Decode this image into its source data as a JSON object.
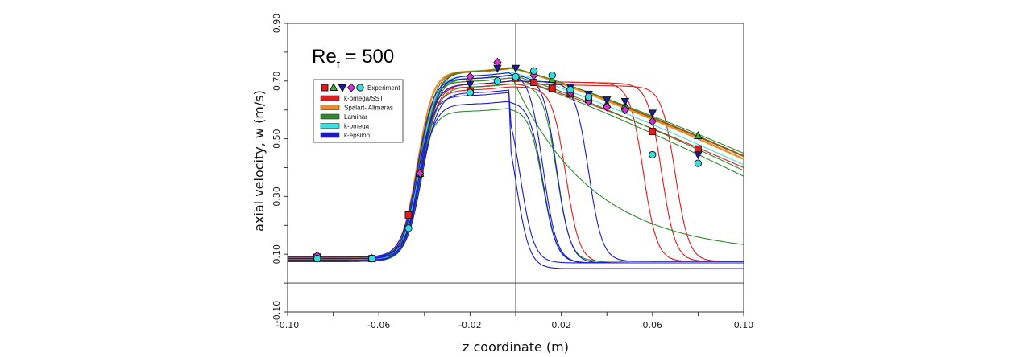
{
  "chart_data": {
    "type": "line",
    "title": "",
    "annotation": {
      "main": "Re",
      "subscript": "t",
      "rest": " = 500"
    },
    "xlabel": "z coordinate (m)",
    "ylabel": "axial velocity, w (m/s)",
    "xlim": [
      -0.1,
      0.1
    ],
    "ylim": [
      -0.1,
      0.9
    ],
    "xticks": [
      -0.1,
      -0.08,
      -0.06,
      -0.04,
      -0.02,
      0.0,
      0.02,
      0.04,
      0.06,
      0.08,
      0.1
    ],
    "xtick_labels": [
      "-0.10",
      "",
      "-0.06",
      "",
      "-0.02",
      "",
      "0.02",
      "",
      "0.06",
      "",
      "0.10"
    ],
    "yticks": [
      -0.1,
      0.0,
      0.1,
      0.2,
      0.3,
      0.4,
      0.5,
      0.6,
      0.7,
      0.8,
      0.9
    ],
    "ytick_labels": [
      "-0.10",
      "",
      "0.10",
      "",
      "0.30",
      "",
      "0.50",
      "",
      "0.70",
      "",
      "0.90"
    ],
    "reference_lines": {
      "horizontal_y": 0.0,
      "vertical_x": 0.0
    },
    "grid": false,
    "legend": {
      "placement": "upper-left",
      "experiment_label": "Experiment",
      "entries": [
        {
          "name": "k-omega/SST",
          "color": "#e41a1c"
        },
        {
          "name": "Spalart- Allmaras",
          "color": "#f28a1e"
        },
        {
          "name": "Laminar",
          "color": "#2e8b2e"
        },
        {
          "name": "k-omega",
          "color": "#3fe0e0"
        },
        {
          "name": "k-epsilon",
          "color": "#1a1ad6"
        }
      ]
    },
    "experiment_markers": [
      {
        "shape": "square",
        "color": "#e41a1c"
      },
      {
        "shape": "triangle-up",
        "color": "#2eb82e"
      },
      {
        "shape": "triangle-down",
        "color": "#1a1aa8"
      },
      {
        "shape": "diamond",
        "color": "#d633d6"
      },
      {
        "shape": "circle",
        "color": "#33dddd"
      }
    ],
    "experiment_series": [
      {
        "shape": "square",
        "color": "#e41a1c",
        "points": [
          [
            -0.087,
            0.09
          ],
          [
            -0.063,
            0.085
          ],
          [
            -0.047,
            0.236
          ],
          [
            -0.042,
            0.38
          ],
          [
            -0.02,
            0.665
          ],
          [
            0.0,
            0.71
          ],
          [
            0.008,
            0.695
          ],
          [
            0.016,
            0.675
          ],
          [
            0.024,
            0.655
          ],
          [
            0.032,
            0.635
          ],
          [
            0.06,
            0.525
          ],
          [
            0.08,
            0.465
          ]
        ]
      },
      {
        "shape": "triangle-up",
        "color": "#2eb82e",
        "points": [
          [
            -0.087,
            0.09
          ],
          [
            -0.063,
            0.085
          ],
          [
            -0.042,
            0.38
          ],
          [
            0.016,
            0.705
          ],
          [
            0.04,
            0.62
          ],
          [
            0.048,
            0.615
          ],
          [
            0.08,
            0.51
          ]
        ]
      },
      {
        "shape": "triangle-down",
        "color": "#1a1aa8",
        "points": [
          [
            -0.087,
            0.09
          ],
          [
            -0.02,
            0.69
          ],
          [
            -0.008,
            0.745
          ],
          [
            0.0,
            0.745
          ],
          [
            0.024,
            0.68
          ],
          [
            0.032,
            0.655
          ],
          [
            0.04,
            0.635
          ],
          [
            0.048,
            0.63
          ],
          [
            0.06,
            0.59
          ],
          [
            0.08,
            0.445
          ]
        ]
      },
      {
        "shape": "diamond",
        "color": "#d633d6",
        "points": [
          [
            -0.087,
            0.095
          ],
          [
            -0.042,
            0.38
          ],
          [
            -0.02,
            0.715
          ],
          [
            -0.008,
            0.765
          ],
          [
            0.008,
            0.72
          ],
          [
            0.024,
            0.66
          ],
          [
            0.032,
            0.63
          ],
          [
            0.04,
            0.61
          ],
          [
            0.048,
            0.6
          ],
          [
            0.06,
            0.56
          ]
        ]
      },
      {
        "shape": "circle",
        "color": "#33dddd",
        "points": [
          [
            -0.087,
            0.085
          ],
          [
            -0.063,
            0.085
          ],
          [
            -0.047,
            0.19
          ],
          [
            -0.02,
            0.66
          ],
          [
            -0.008,
            0.7
          ],
          [
            0.0,
            0.715
          ],
          [
            0.008,
            0.735
          ],
          [
            0.016,
            0.72
          ],
          [
            0.024,
            0.67
          ],
          [
            0.032,
            0.645
          ],
          [
            0.06,
            0.445
          ],
          [
            0.08,
            0.415
          ]
        ]
      }
    ],
    "model_series": [
      {
        "model": "k-omega/SST",
        "color": "#e41a1c",
        "peak": 0.71,
        "drop_z": null,
        "end": 0.4
      },
      {
        "model": "k-omega/SST",
        "color": "#e41a1c",
        "peak": 0.7,
        "drop_z": 0.056,
        "end": 0.075
      },
      {
        "model": "k-omega/SST",
        "color": "#e41a1c",
        "peak": 0.7,
        "drop_z": 0.064,
        "end": 0.075
      },
      {
        "model": "k-omega/SST",
        "color": "#e41a1c",
        "peak": 0.69,
        "drop_z": 0.07,
        "end": 0.075
      },
      {
        "model": "k-omega/SST",
        "color": "#e41a1c",
        "peak": 0.68,
        "drop_z": 0.022,
        "end": 0.07
      },
      {
        "model": "Spalart- Allmaras",
        "color": "#8b5a1a",
        "peak": 0.745,
        "drop_z": null,
        "end": 0.44
      },
      {
        "model": "Spalart- Allmaras",
        "color": "#f28a1e",
        "peak": 0.745,
        "drop_z": null,
        "end": 0.43
      },
      {
        "model": "Laminar",
        "color": "#2e8b2e",
        "peak": 0.745,
        "drop_z": null,
        "end": 0.45
      },
      {
        "model": "Laminar",
        "color": "#2e8b2e",
        "peak": 0.72,
        "drop_z": null,
        "end": 0.39
      },
      {
        "model": "Laminar",
        "color": "#2e8b2e",
        "peak": 0.71,
        "drop_z": null,
        "end": 0.37
      },
      {
        "model": "Laminar",
        "color": "#2e8b2e",
        "peak": 0.72,
        "drop_z": "slow",
        "end": 0.1
      },
      {
        "model": "Laminar",
        "color": "#2e8b2e",
        "peak": 0.69,
        "drop_z": 0.018,
        "end": 0.075
      },
      {
        "model": "Laminar",
        "color": "#2e8b2e",
        "peak": 0.605,
        "drop_z": 0.012,
        "end": 0.07
      },
      {
        "model": "k-omega",
        "color": "#3fe0e0",
        "peak": 0.73,
        "drop_z": null,
        "end": 0.41
      },
      {
        "model": "k-epsilon",
        "color": "#1a1ad6",
        "peak": 0.73,
        "drop_z": 0.012,
        "end": 0.07
      },
      {
        "model": "k-epsilon",
        "color": "#1a1ad6",
        "peak": 0.72,
        "drop_z": 0.018,
        "end": 0.07
      },
      {
        "model": "k-epsilon",
        "color": "#1a1ad6",
        "peak": 0.7,
        "drop_z": 0.032,
        "end": 0.075
      },
      {
        "model": "k-epsilon",
        "color": "#1a1ad6",
        "peak": 0.67,
        "drop_z": 0.002,
        "end": 0.07
      },
      {
        "model": "k-epsilon",
        "color": "#1a1ad6",
        "peak": 0.66,
        "drop_z": 0.0,
        "end": 0.05
      },
      {
        "model": "k-epsilon",
        "color": "#1a1ad6",
        "peak": 0.63,
        "drop_z": 0.012,
        "end": 0.07
      }
    ]
  }
}
